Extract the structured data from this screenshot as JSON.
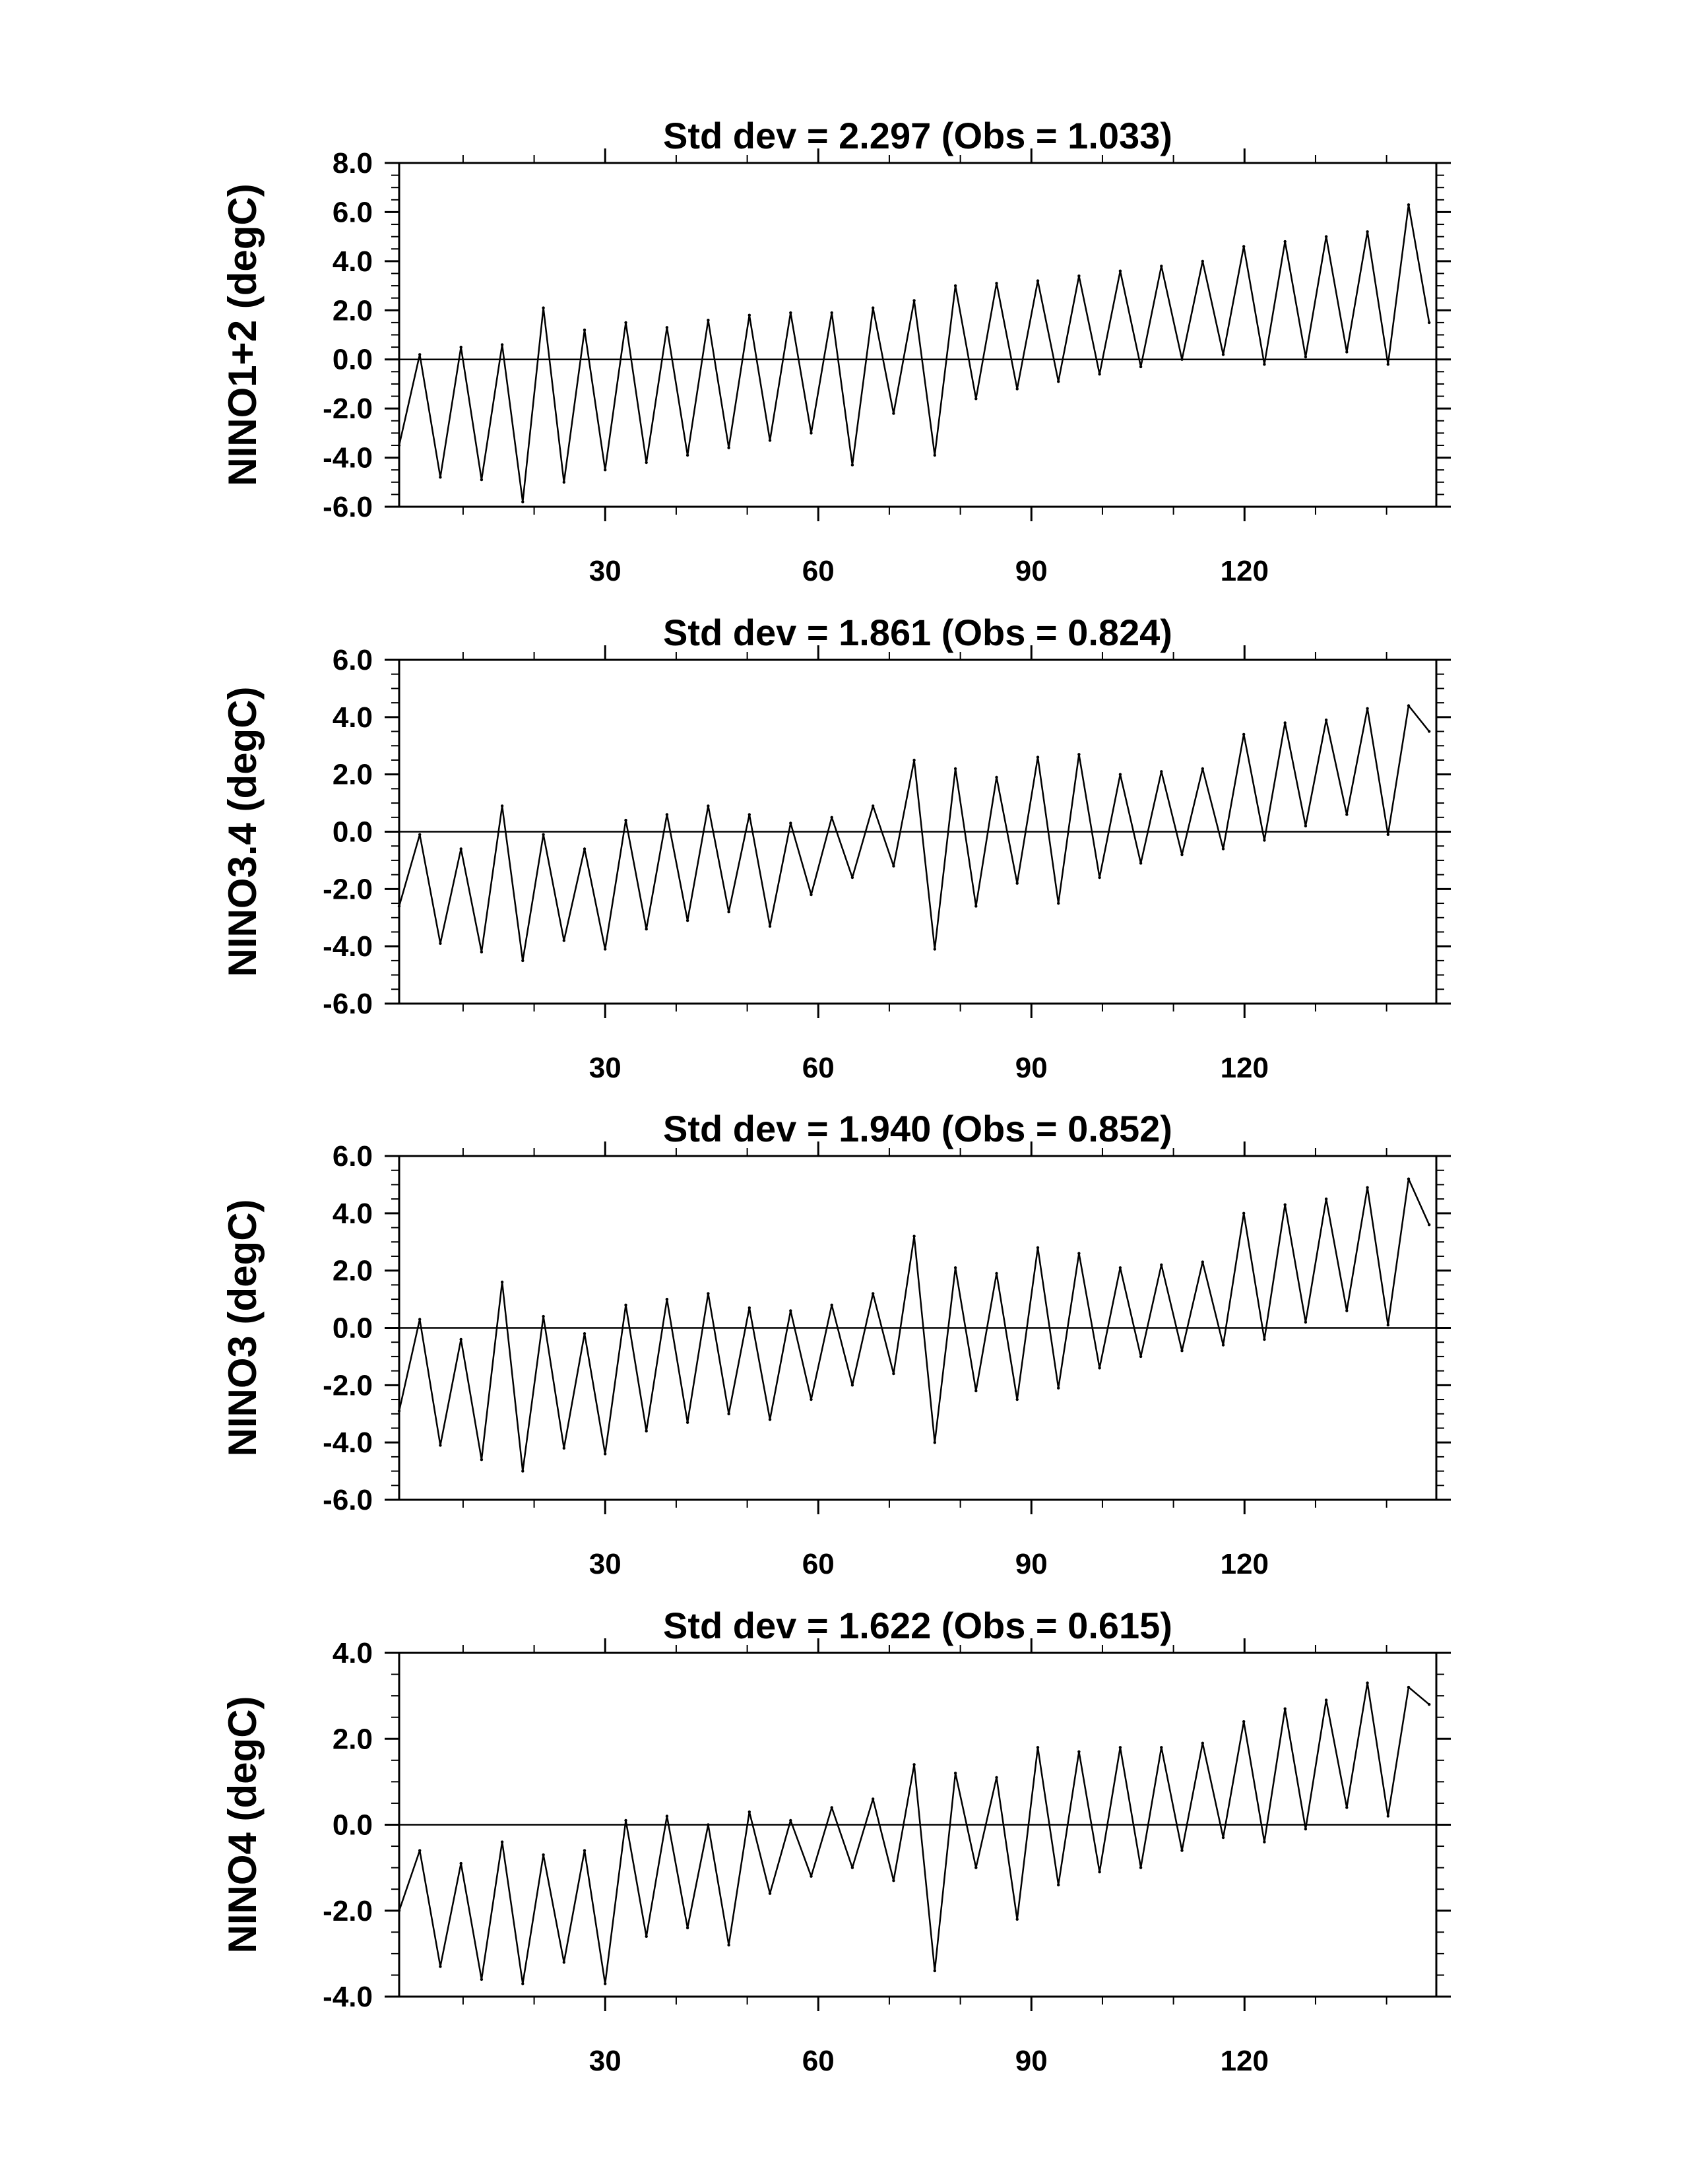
{
  "chart_data": [
    {
      "type": "line",
      "title": "Std dev = 2.297 (Obs = 1.033)",
      "ylabel": "NINO1+2 (degC)",
      "xlabel": "",
      "xlim": [
        1,
        147
      ],
      "ylim": [
        -6,
        8
      ],
      "yticks": [
        -6,
        -4,
        -2,
        0,
        2,
        4,
        6,
        8
      ],
      "ytick_labels": [
        "-6.0",
        "-4.0",
        "-2.0",
        "0.0",
        "2.0",
        "4.0",
        "6.0",
        "8.0"
      ],
      "xticks": [
        30,
        60,
        90,
        120
      ],
      "xtick_labels": [
        "30",
        "60",
        "90",
        "120"
      ],
      "zero_line": true,
      "grid": false,
      "series": [
        {
          "x": [
            1,
            3.9,
            6.8,
            9.7,
            12.6,
            15.5,
            18.4,
            21.3,
            24.2,
            27.1,
            30,
            32.9,
            35.8,
            38.7,
            41.6,
            44.5,
            47.4,
            50.3,
            53.2,
            56.1,
            59,
            61.9,
            64.8,
            67.7,
            70.6,
            73.5,
            76.4,
            79.3,
            82.2,
            85.1,
            88,
            90.9,
            93.8,
            96.7,
            99.6,
            102.5,
            105.4,
            108.3,
            111.2,
            114.1,
            117,
            119.9,
            122.8,
            125.7,
            128.6,
            131.5,
            134.4,
            137.3,
            140.2,
            143.1,
            146
          ],
          "values": [
            -3.5,
            0.2,
            -4.8,
            0.5,
            -4.9,
            0.6,
            -5.8,
            2.1,
            -5.0,
            1.2,
            -4.5,
            1.5,
            -4.2,
            1.3,
            -3.9,
            1.6,
            -3.6,
            1.8,
            -3.3,
            1.9,
            -3.0,
            1.9,
            -4.3,
            2.1,
            -2.2,
            2.4,
            -3.9,
            3.0,
            -1.6,
            3.1,
            -1.2,
            3.2,
            -0.9,
            3.4,
            -0.6,
            3.6,
            -0.3,
            3.8,
            0.0,
            4.0,
            0.2,
            4.6,
            -0.2,
            4.8,
            0.1,
            5.0,
            0.3,
            5.2,
            -0.2,
            6.3,
            1.5
          ]
        }
      ]
    },
    {
      "type": "line",
      "title": "Std dev = 1.861 (Obs = 0.824)",
      "ylabel": "NINO3.4 (degC)",
      "xlabel": "",
      "xlim": [
        1,
        147
      ],
      "ylim": [
        -6,
        6
      ],
      "yticks": [
        -6,
        -4,
        -2,
        0,
        2,
        4,
        6
      ],
      "ytick_labels": [
        "-6.0",
        "-4.0",
        "-2.0",
        "0.0",
        "2.0",
        "4.0",
        "6.0"
      ],
      "xticks": [
        30,
        60,
        90,
        120
      ],
      "xtick_labels": [
        "30",
        "60",
        "90",
        "120"
      ],
      "zero_line": true,
      "grid": false,
      "series": [
        {
          "x": [
            1,
            3.9,
            6.8,
            9.7,
            12.6,
            15.5,
            18.4,
            21.3,
            24.2,
            27.1,
            30,
            32.9,
            35.8,
            38.7,
            41.6,
            44.5,
            47.4,
            50.3,
            53.2,
            56.1,
            59,
            61.9,
            64.8,
            67.7,
            70.6,
            73.5,
            76.4,
            79.3,
            82.2,
            85.1,
            88,
            90.9,
            93.8,
            96.7,
            99.6,
            102.5,
            105.4,
            108.3,
            111.2,
            114.1,
            117,
            119.9,
            122.8,
            125.7,
            128.6,
            131.5,
            134.4,
            137.3,
            140.2,
            143.1,
            146
          ],
          "values": [
            -2.6,
            -0.1,
            -3.9,
            -0.6,
            -4.2,
            0.9,
            -4.5,
            -0.1,
            -3.8,
            -0.6,
            -4.1,
            0.4,
            -3.4,
            0.6,
            -3.1,
            0.9,
            -2.8,
            0.6,
            -3.3,
            0.3,
            -2.2,
            0.5,
            -1.6,
            0.9,
            -1.2,
            2.5,
            -4.1,
            2.2,
            -2.6,
            1.9,
            -1.8,
            2.6,
            -2.5,
            2.7,
            -1.6,
            2.0,
            -1.1,
            2.1,
            -0.8,
            2.2,
            -0.6,
            3.4,
            -0.3,
            3.8,
            0.2,
            3.9,
            0.6,
            4.3,
            -0.1,
            4.4,
            3.5
          ]
        }
      ]
    },
    {
      "type": "line",
      "title": "Std dev = 1.940 (Obs = 0.852)",
      "ylabel": "NINO3 (degC)",
      "xlabel": "",
      "xlim": [
        1,
        147
      ],
      "ylim": [
        -6,
        6
      ],
      "yticks": [
        -6,
        -4,
        -2,
        0,
        2,
        4,
        6
      ],
      "ytick_labels": [
        "-6.0",
        "-4.0",
        "-2.0",
        "0.0",
        "2.0",
        "4.0",
        "6.0"
      ],
      "xticks": [
        30,
        60,
        90,
        120
      ],
      "xtick_labels": [
        "30",
        "60",
        "90",
        "120"
      ],
      "zero_line": true,
      "grid": false,
      "series": [
        {
          "x": [
            1,
            3.9,
            6.8,
            9.7,
            12.6,
            15.5,
            18.4,
            21.3,
            24.2,
            27.1,
            30,
            32.9,
            35.8,
            38.7,
            41.6,
            44.5,
            47.4,
            50.3,
            53.2,
            56.1,
            59,
            61.9,
            64.8,
            67.7,
            70.6,
            73.5,
            76.4,
            79.3,
            82.2,
            85.1,
            88,
            90.9,
            93.8,
            96.7,
            99.6,
            102.5,
            105.4,
            108.3,
            111.2,
            114.1,
            117,
            119.9,
            122.8,
            125.7,
            128.6,
            131.5,
            134.4,
            137.3,
            140.2,
            143.1,
            146
          ],
          "values": [
            -2.9,
            0.3,
            -4.1,
            -0.4,
            -4.6,
            1.6,
            -5.0,
            0.4,
            -4.2,
            -0.2,
            -4.4,
            0.8,
            -3.6,
            1.0,
            -3.3,
            1.2,
            -3.0,
            0.7,
            -3.2,
            0.6,
            -2.5,
            0.8,
            -2.0,
            1.2,
            -1.6,
            3.2,
            -4.0,
            2.1,
            -2.2,
            1.9,
            -2.5,
            2.8,
            -2.1,
            2.6,
            -1.4,
            2.1,
            -1.0,
            2.2,
            -0.8,
            2.3,
            -0.6,
            4.0,
            -0.4,
            4.3,
            0.2,
            4.5,
            0.6,
            4.9,
            0.1,
            5.2,
            3.6
          ]
        }
      ]
    },
    {
      "type": "line",
      "title": "Std dev = 1.622 (Obs = 0.615)",
      "ylabel": "NINO4 (degC)",
      "xlabel": "",
      "xlim": [
        1,
        147
      ],
      "ylim": [
        -4,
        4
      ],
      "yticks": [
        -4,
        -2,
        0,
        2,
        4
      ],
      "ytick_labels": [
        "-4.0",
        "-2.0",
        "0.0",
        "2.0",
        "4.0"
      ],
      "xticks": [
        30,
        60,
        90,
        120
      ],
      "xtick_labels": [
        "30",
        "60",
        "90",
        "120"
      ],
      "zero_line": true,
      "grid": false,
      "series": [
        {
          "x": [
            1,
            3.9,
            6.8,
            9.7,
            12.6,
            15.5,
            18.4,
            21.3,
            24.2,
            27.1,
            30,
            32.9,
            35.8,
            38.7,
            41.6,
            44.5,
            47.4,
            50.3,
            53.2,
            56.1,
            59,
            61.9,
            64.8,
            67.7,
            70.6,
            73.5,
            76.4,
            79.3,
            82.2,
            85.1,
            88,
            90.9,
            93.8,
            96.7,
            99.6,
            102.5,
            105.4,
            108.3,
            111.2,
            114.1,
            117,
            119.9,
            122.8,
            125.7,
            128.6,
            131.5,
            134.4,
            137.3,
            140.2,
            143.1,
            146
          ],
          "values": [
            -2.0,
            -0.6,
            -3.3,
            -0.9,
            -3.6,
            -0.4,
            -3.7,
            -0.7,
            -3.2,
            -0.6,
            -3.7,
            0.1,
            -2.6,
            0.2,
            -2.4,
            0.0,
            -2.8,
            0.3,
            -1.6,
            0.1,
            -1.2,
            0.4,
            -1.0,
            0.6,
            -1.3,
            1.4,
            -3.4,
            1.2,
            -1.0,
            1.1,
            -2.2,
            1.8,
            -1.4,
            1.7,
            -1.1,
            1.8,
            -1.0,
            1.8,
            -0.6,
            1.9,
            -0.3,
            2.4,
            -0.4,
            2.7,
            -0.1,
            2.9,
            0.4,
            3.3,
            0.2,
            3.2,
            2.8
          ]
        }
      ]
    }
  ]
}
